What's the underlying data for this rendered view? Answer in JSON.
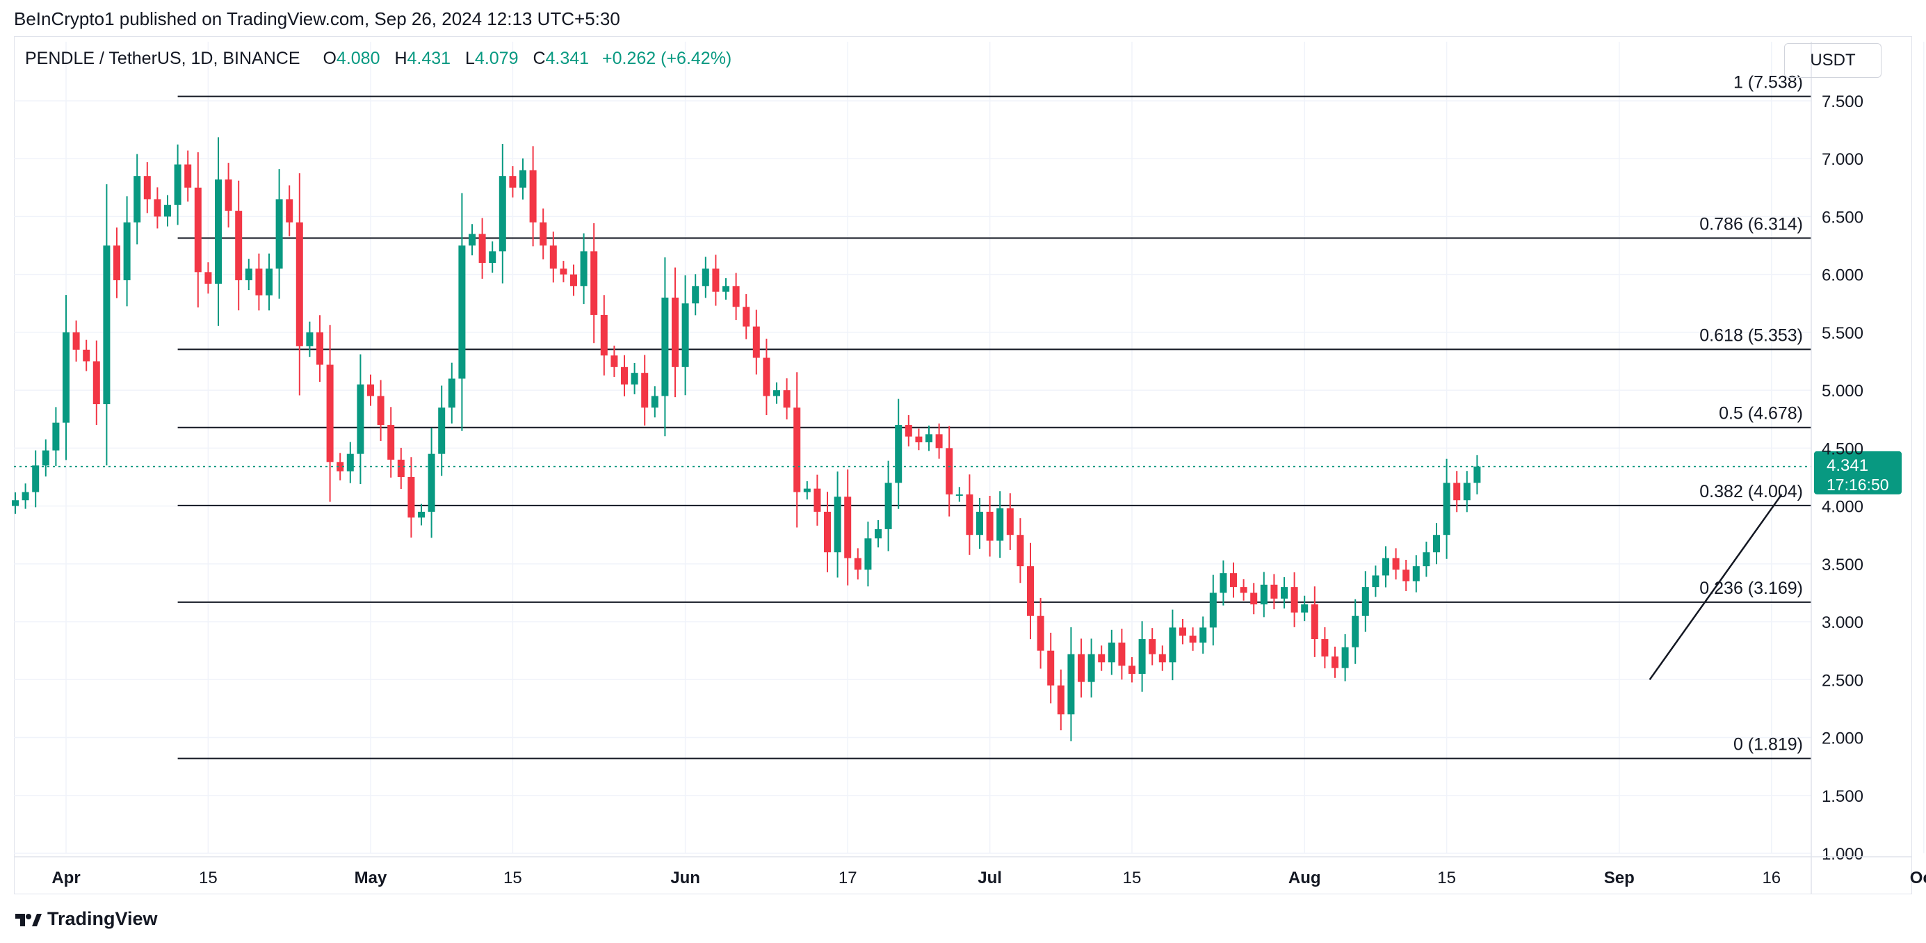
{
  "header": {
    "publish_text": "BeInCrypto1 published on TradingView.com, Sep 26, 2024 12:13 UTC+5:30"
  },
  "legend": {
    "symbol": "PENDLE / TetherUS, 1D, BINANCE",
    "o_label": "O",
    "o_value": "4.080",
    "h_label": "H",
    "h_value": "4.431",
    "l_label": "L",
    "l_value": "4.079",
    "c_label": "C",
    "c_value": "4.341",
    "change": "+0.262 (+6.42%)"
  },
  "currency": "USDT",
  "price_tag": {
    "price": "4.341",
    "countdown": "17:16:50"
  },
  "footer": {
    "brand": "TradingView"
  },
  "colors": {
    "up": "#089981",
    "down": "#F23645",
    "grid": "#f0f3fa",
    "text": "#131722"
  },
  "chart_data": {
    "type": "candlestick",
    "title": "PENDLE / TetherUS, 1D, BINANCE",
    "interval": "1D",
    "y_axis": {
      "ylim": [
        1.0,
        7.8
      ],
      "ticks": [
        1.0,
        1.5,
        2.0,
        2.5,
        3.0,
        3.5,
        4.0,
        4.5,
        5.0,
        5.5,
        6.0,
        6.5,
        7.0,
        7.5
      ],
      "tick_labels": [
        "1.000",
        "1.500",
        "2.000",
        "2.500",
        "3.000",
        "3.500",
        "4.000",
        "4.500",
        "5.000",
        "5.500",
        "6.000",
        "6.500",
        "7.000",
        "7.500"
      ]
    },
    "x_axis": {
      "first_date": "2024-03-27",
      "last_visible_date": "2024-10-01",
      "ticks": [
        {
          "date": "2024-04-01",
          "label": "Apr",
          "bold": true
        },
        {
          "date": "2024-04-15",
          "label": "15",
          "bold": false
        },
        {
          "date": "2024-05-01",
          "label": "May",
          "bold": true
        },
        {
          "date": "2024-05-15",
          "label": "15",
          "bold": false
        },
        {
          "date": "2024-06-01",
          "label": "Jun",
          "bold": true
        },
        {
          "date": "2024-06-17",
          "label": "17",
          "bold": false
        },
        {
          "date": "2024-07-01",
          "label": "Jul",
          "bold": true
        },
        {
          "date": "2024-07-15",
          "label": "15",
          "bold": false
        },
        {
          "date": "2024-08-01",
          "label": "Aug",
          "bold": true
        },
        {
          "date": "2024-08-15",
          "label": "15",
          "bold": false
        },
        {
          "date": "2024-09-01",
          "label": "Sep",
          "bold": true
        },
        {
          "date": "2024-09-16",
          "label": "16",
          "bold": false
        },
        {
          "date": "2024-10-01",
          "label": "Oct",
          "bold": true
        }
      ],
      "extra_tick_day": 36,
      "extra_tick_label": "1"
    },
    "fibonacci": {
      "start_date": "2024-04-12",
      "levels": [
        {
          "ratio": "1",
          "value": 7.538,
          "label": "1 (7.538)"
        },
        {
          "ratio": "0.786",
          "value": 6.314,
          "label": "0.786 (6.314)"
        },
        {
          "ratio": "0.618",
          "value": 5.353,
          "label": "0.618 (5.353)"
        },
        {
          "ratio": "0.5",
          "value": 4.678,
          "label": "0.5 (4.678)"
        },
        {
          "ratio": "0.382",
          "value": 4.004,
          "label": "0.382 (4.004)"
        },
        {
          "ratio": "0.236",
          "value": 3.169,
          "label": "0.236 (3.169)"
        },
        {
          "ratio": "0",
          "value": 1.819,
          "label": "0 (1.819)"
        }
      ]
    },
    "trendline": {
      "from": {
        "day": 161,
        "price": 2.5
      },
      "to": {
        "day": 174,
        "price": 4.1
      }
    },
    "last_price": 4.341,
    "closes": [
      4.05,
      4.12,
      4.35,
      4.48,
      4.72,
      5.5,
      5.35,
      5.25,
      4.88,
      6.25,
      5.95,
      6.45,
      6.85,
      6.65,
      6.5,
      6.6,
      6.95,
      6.75,
      6.02,
      5.92,
      6.82,
      6.55,
      5.95,
      6.05,
      5.82,
      6.05,
      6.65,
      6.45,
      5.38,
      5.5,
      5.22,
      4.38,
      4.3,
      4.45,
      5.05,
      4.95,
      4.7,
      4.4,
      4.25,
      3.9,
      3.95,
      4.45,
      4.85,
      5.1,
      6.25,
      6.35,
      6.1,
      6.2,
      6.85,
      6.75,
      6.9,
      6.45,
      6.25,
      6.05,
      6.0,
      5.9,
      6.2,
      5.65,
      5.3,
      5.2,
      5.05,
      5.15,
      4.85,
      4.95,
      5.8,
      5.2,
      5.75,
      5.9,
      6.05,
      5.85,
      5.9,
      5.72,
      5.55,
      5.28,
      4.95,
      5.0,
      4.85,
      4.12,
      4.15,
      3.95,
      3.6,
      4.08,
      3.55,
      3.45,
      3.72,
      3.8,
      4.2,
      4.7,
      4.6,
      4.55,
      4.62,
      4.5,
      4.1,
      4.1,
      3.75,
      3.95,
      3.7,
      3.98,
      3.75,
      3.48,
      3.05,
      2.75,
      2.45,
      2.2,
      2.72,
      2.48,
      2.72,
      2.65,
      2.82,
      2.62,
      2.55,
      2.85,
      2.72,
      2.65,
      2.95,
      2.88,
      2.82,
      2.95,
      3.25,
      3.42,
      3.3,
      3.25,
      3.15,
      3.32,
      3.2,
      3.3,
      3.08,
      3.15,
      2.85,
      2.7,
      2.6,
      2.78,
      3.05,
      3.3,
      3.4,
      3.55,
      3.45,
      3.35,
      3.48,
      3.6,
      3.75,
      4.2,
      4.05,
      4.2,
      4.341
    ]
  }
}
